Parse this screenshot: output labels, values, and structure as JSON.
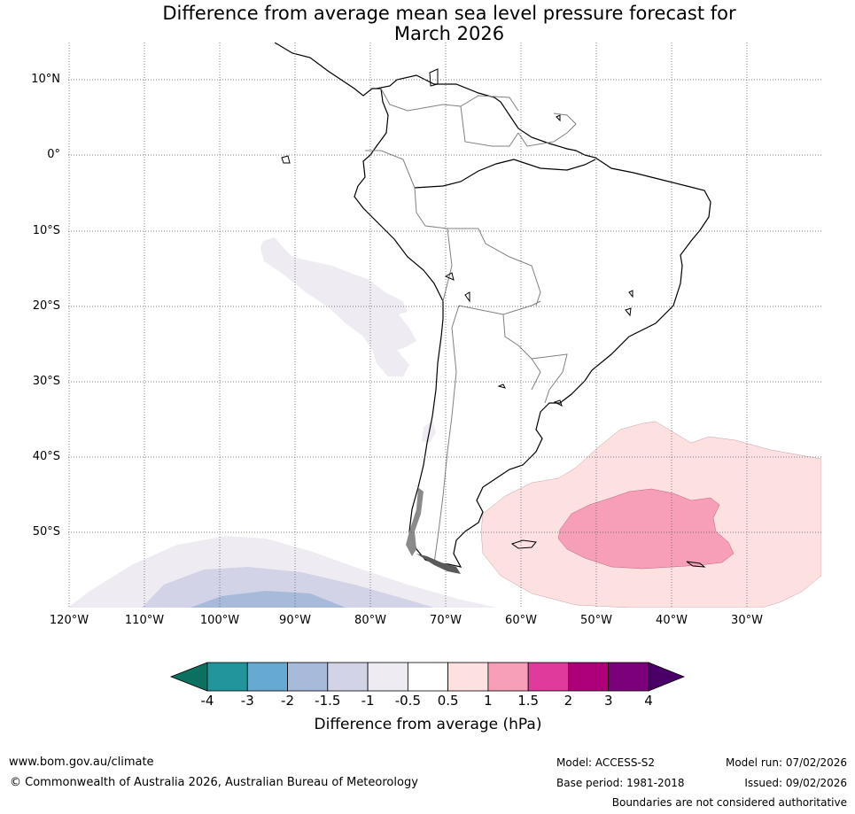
{
  "title": {
    "line1": "Difference from average mean sea level pressure forecast for",
    "line2": "March 2026"
  },
  "map": {
    "lat_labels": [
      "10°N",
      "0°",
      "10°S",
      "20°S",
      "30°S",
      "40°S",
      "50°S"
    ],
    "lon_labels": [
      "120°W",
      "110°W",
      "100°W",
      "90°W",
      "80°W",
      "70°W",
      "60°W",
      "50°W",
      "40°W",
      "30°W"
    ],
    "colors": {
      "land_outline": "#000000",
      "border": "#808080",
      "grid": "#555555",
      "band_neg_1_to_neg_0_5": "#efebf2",
      "band_neg_1_5_to_neg_1": "#d2d3e7",
      "band_neg_2_to_neg_1_5": "#a8bad9",
      "band_0_5_to_1": "#fde0e0",
      "band_1_to_1_5": "#f79fb8"
    }
  },
  "colorbar": {
    "title": "Difference from average (hPa)",
    "ticks": [
      "-4",
      "-3",
      "-2",
      "-1.5",
      "-1",
      "-0.5",
      "0.5",
      "1",
      "1.5",
      "2",
      "3",
      "4"
    ],
    "colors": [
      "#0c7060",
      "#21959c",
      "#66aad2",
      "#a8bad9",
      "#d2d3e7",
      "#efebf2",
      "#ffffff",
      "#fde0e0",
      "#f79fb8",
      "#e03b9c",
      "#ad0078",
      "#7b0079",
      "#4b0068"
    ]
  },
  "footer": {
    "url": "www.bom.gov.au/climate",
    "copyright": "© Commonwealth of Australia 2026, Australian Bureau of Meteorology",
    "model": "Model: ACCESS-S2",
    "base_period": "Base period: 1981-2018",
    "model_run": "Model run: 07/02/2026",
    "issued": "Issued: 09/02/2026",
    "disclaimer": "Boundaries are not considered authoritative"
  }
}
